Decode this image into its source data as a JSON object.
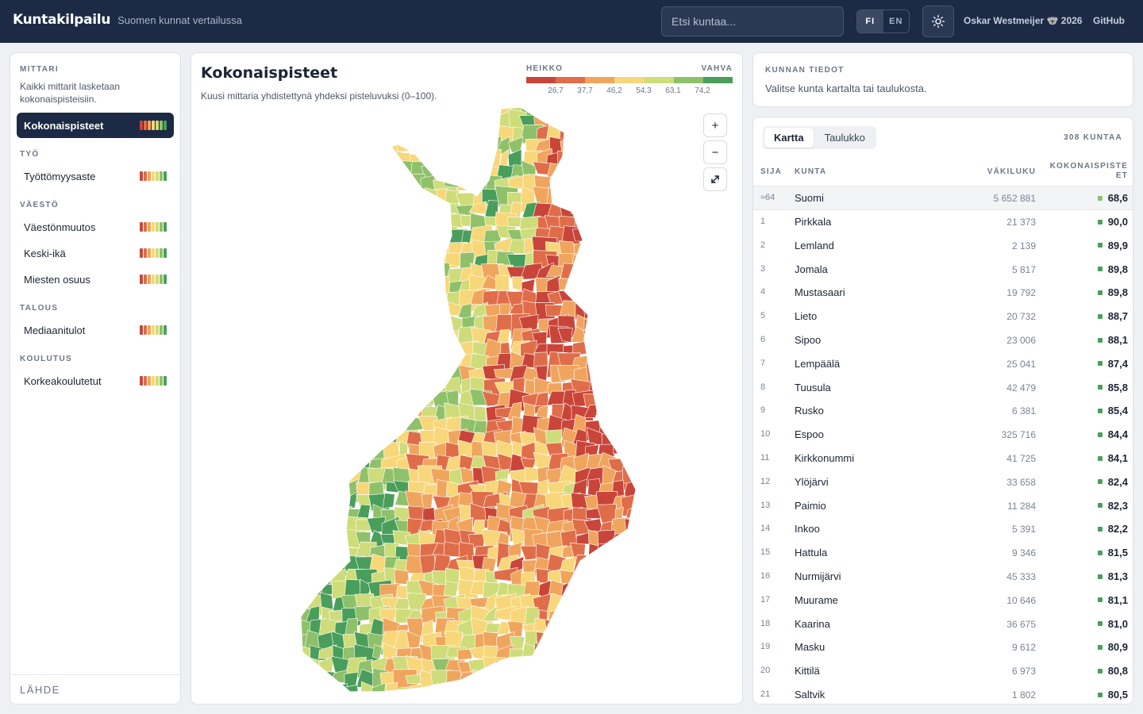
{
  "header": {
    "title": "Kuntakilpailu",
    "subtitle": "Suomen kunnat vertailussa",
    "search_placeholder": "Etsi kuntaa...",
    "lang": [
      {
        "label": "FI",
        "active": true
      },
      {
        "label": "EN",
        "active": false
      }
    ],
    "theme_icon": "sun-icon",
    "author": "Oskar Westmeijer 🐨 2026",
    "github": "GitHub"
  },
  "sidebar": {
    "mittari_label": "MITTARI",
    "mittari_desc": "Kaikki mittarit lasketaan kokonaispisteisiin.",
    "total_label": "Kokonaispisteet",
    "groups": [
      {
        "label": "TYÖ",
        "items": [
          "Työttömyysaste"
        ]
      },
      {
        "label": "VÄESTÖ",
        "items": [
          "Väestönmuutos",
          "Keski-ikä",
          "Miesten osuus"
        ]
      },
      {
        "label": "TALOUS",
        "items": [
          "Mediaanitulot"
        ]
      },
      {
        "label": "KOULUTUS",
        "items": [
          "Korkeakoulutetut"
        ]
      }
    ],
    "source": "LÄHDE"
  },
  "map": {
    "title": "Kokonaispisteet",
    "subtitle": "Kuusi mittaria yhdistettynä yhdeksi pisteluvuksi (0–100).",
    "legend_low": "HEIKKO",
    "legend_high": "VAHVA",
    "legend_ticks": [
      "26,7",
      "37,7",
      "46,2",
      "54,3",
      "63,1",
      "74,2"
    ],
    "zoom_in": "+",
    "zoom_out": "−",
    "fullscreen_icon": "expand-icon"
  },
  "colors": {
    "scale": [
      "#c9453a",
      "#e06d4a",
      "#f0a55e",
      "#f7d77a",
      "#cfdc7a",
      "#8fc16a",
      "#4a9e5c"
    ],
    "header_bg": "#1c2a45"
  },
  "info": {
    "label": "KUNNAN TIEDOT",
    "text": "Valitse kunta kartalta tai taulukosta."
  },
  "table": {
    "tabs": [
      {
        "label": "Kartta",
        "active": true
      },
      {
        "label": "Taulukko",
        "active": false
      }
    ],
    "count": "308 KUNTAA",
    "headers": {
      "rank": "SIJA",
      "name": "KUNTA",
      "pop": "VÄKILUKU",
      "score": "KOKONAISPISTEET"
    },
    "reference": {
      "rank": "≈64",
      "name": "Suomi",
      "pop": "5 652 881",
      "score": "68,6",
      "color": "#8fc16a"
    },
    "rows": [
      {
        "rank": "1",
        "name": "Pirkkala",
        "pop": "21 373",
        "score": "90,0"
      },
      {
        "rank": "2",
        "name": "Lemland",
        "pop": "2 139",
        "score": "89,9"
      },
      {
        "rank": "3",
        "name": "Jomala",
        "pop": "5 817",
        "score": "89,8"
      },
      {
        "rank": "4",
        "name": "Mustasaari",
        "pop": "19 792",
        "score": "89,8"
      },
      {
        "rank": "5",
        "name": "Lieto",
        "pop": "20 732",
        "score": "88,7"
      },
      {
        "rank": "6",
        "name": "Sipoo",
        "pop": "23 006",
        "score": "88,1"
      },
      {
        "rank": "7",
        "name": "Lempäälä",
        "pop": "25 041",
        "score": "87,4"
      },
      {
        "rank": "8",
        "name": "Tuusula",
        "pop": "42 479",
        "score": "85,8"
      },
      {
        "rank": "9",
        "name": "Rusko",
        "pop": "6 381",
        "score": "85,4"
      },
      {
        "rank": "10",
        "name": "Espoo",
        "pop": "325 716",
        "score": "84,4"
      },
      {
        "rank": "11",
        "name": "Kirkkonummi",
        "pop": "41 725",
        "score": "84,1"
      },
      {
        "rank": "12",
        "name": "Ylöjärvi",
        "pop": "33 658",
        "score": "82,4"
      },
      {
        "rank": "13",
        "name": "Paimio",
        "pop": "11 284",
        "score": "82,3"
      },
      {
        "rank": "14",
        "name": "Inkoo",
        "pop": "5 391",
        "score": "82,2"
      },
      {
        "rank": "15",
        "name": "Hattula",
        "pop": "9 346",
        "score": "81,5"
      },
      {
        "rank": "16",
        "name": "Nurmijärvi",
        "pop": "45 333",
        "score": "81,3"
      },
      {
        "rank": "17",
        "name": "Muurame",
        "pop": "10 646",
        "score": "81,1"
      },
      {
        "rank": "18",
        "name": "Kaarina",
        "pop": "36 675",
        "score": "81,0"
      },
      {
        "rank": "19",
        "name": "Masku",
        "pop": "9 612",
        "score": "80,9"
      },
      {
        "rank": "20",
        "name": "Kittilä",
        "pop": "6 973",
        "score": "80,8"
      },
      {
        "rank": "21",
        "name": "Saltvik",
        "pop": "1 802",
        "score": "80,5"
      }
    ]
  }
}
